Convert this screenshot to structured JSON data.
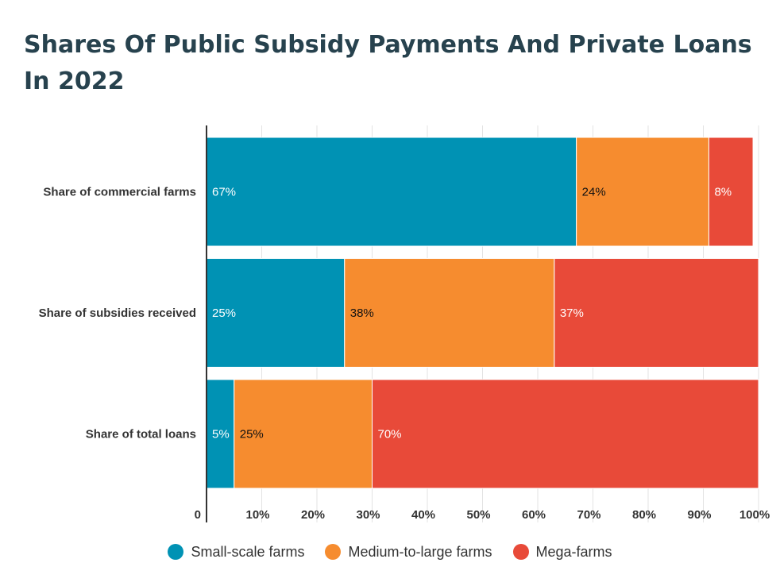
{
  "chart_data": {
    "type": "bar",
    "orientation": "horizontal",
    "stacked": true,
    "title": "Shares Of Public Subsidy Payments And Private Loans In 2022",
    "categories": [
      "Share of commercial farms",
      "Share of subsidies received",
      "Share of total loans"
    ],
    "series": [
      {
        "name": "Small-scale farms",
        "color": "#0092b4",
        "label_color": "#ffffff",
        "values": [
          67,
          25,
          5
        ],
        "labels": [
          "67%",
          "25%",
          "5%"
        ]
      },
      {
        "name": "Medium-to-large farms",
        "color": "#f68c2f",
        "label_color": "#111111",
        "values": [
          24,
          38,
          25
        ],
        "labels": [
          "24%",
          "38%",
          "25%"
        ]
      },
      {
        "name": "Mega-farms",
        "color": "#e84a39",
        "label_color": "#ffffff",
        "values": [
          8,
          37,
          70
        ],
        "labels": [
          "8%",
          "37%",
          "70%"
        ]
      }
    ],
    "xlim": [
      0,
      100
    ],
    "x_ticks": [
      0,
      10,
      20,
      30,
      40,
      50,
      60,
      70,
      80,
      90,
      100
    ],
    "x_tick_labels": [
      "0",
      "10%",
      "20%",
      "30%",
      "40%",
      "50%",
      "60%",
      "70%",
      "80%",
      "90%",
      "100%"
    ],
    "grid": true,
    "legend_position": "bottom-center"
  }
}
